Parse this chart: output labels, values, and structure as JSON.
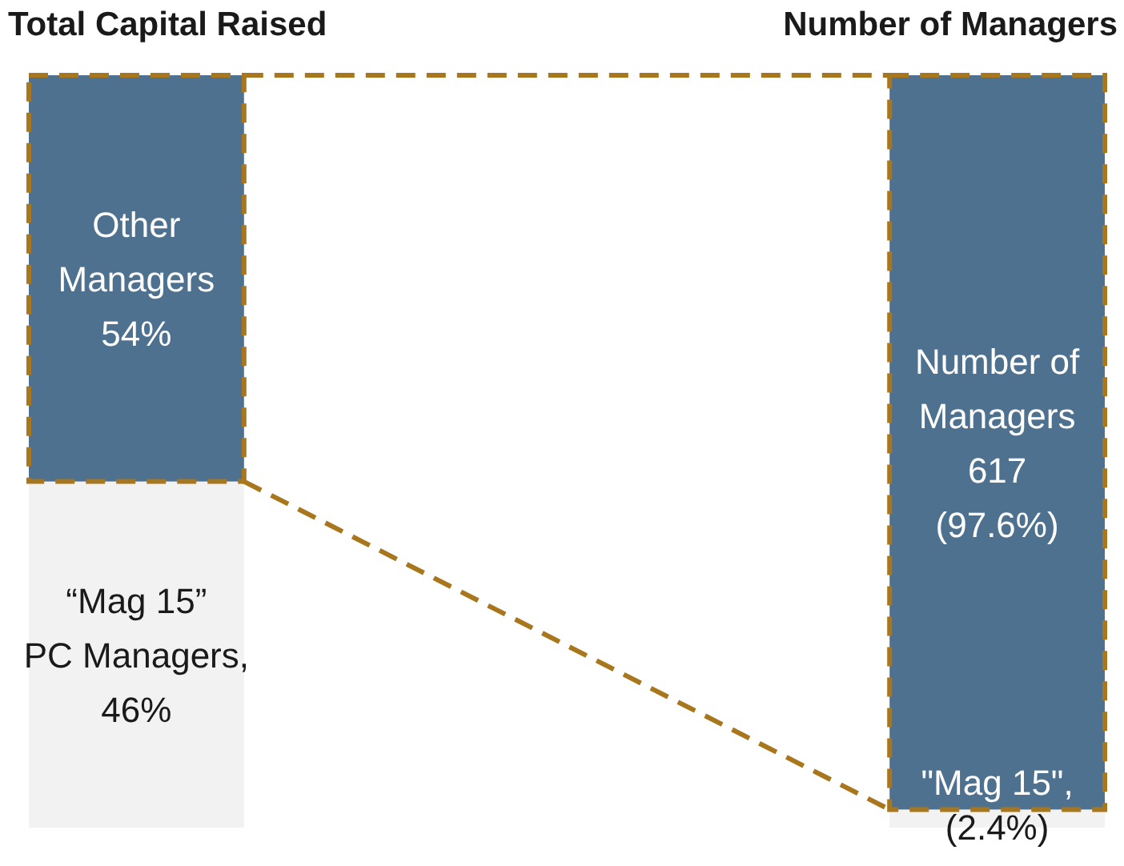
{
  "chart_data": {
    "type": "bar",
    "stacked": true,
    "categories": [
      "Total Capital Raised",
      "Number of Managers"
    ],
    "ylim": [
      0,
      100
    ],
    "series": [
      {
        "color": "#f2f2f2",
        "values": [
          46,
          2.4
        ],
        "value_labels": [
          "“Mag 15”\nPC Managers,\n46%",
          "\"Mag 15\",\n(2.4%)"
        ]
      },
      {
        "color": "#4e7190",
        "values": [
          54,
          97.6
        ],
        "value_labels": [
          "Other\nManagers\n54%",
          "Number of\nManagers\n617\n(97.6%)"
        ]
      }
    ]
  }
}
